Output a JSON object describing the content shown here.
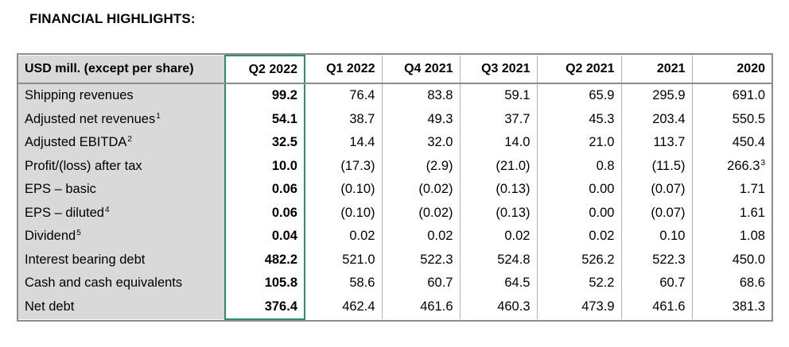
{
  "heading": "FINANCIAL HIGHLIGHTS:",
  "columns": [
    "USD mill. (except per share)",
    "Q2 2022",
    "Q1 2022",
    "Q4 2021",
    "Q3 2021",
    "Q2 2021",
    "2021",
    "2020"
  ],
  "rows": [
    {
      "label": "Shipping revenues",
      "sup": "",
      "values": [
        "99.2",
        "76.4",
        "83.8",
        "59.1",
        "65.9",
        "295.9",
        "691.0"
      ],
      "last_sup": ""
    },
    {
      "label": "Adjusted net revenues",
      "sup": "1",
      "values": [
        "54.1",
        "38.7",
        "49.3",
        "37.7",
        "45.3",
        "203.4",
        "550.5"
      ],
      "last_sup": ""
    },
    {
      "label": "Adjusted EBITDA",
      "sup": "2",
      "values": [
        "32.5",
        "14.4",
        "32.0",
        "14.0",
        "21.0",
        "113.7",
        "450.4"
      ],
      "last_sup": ""
    },
    {
      "label": "Profit/(loss) after tax",
      "sup": "",
      "values": [
        "10.0",
        "(17.3)",
        "(2.9)",
        "(21.0)",
        "0.8",
        "(11.5)",
        "266.3"
      ],
      "last_sup": "3"
    },
    {
      "label": "EPS – basic",
      "sup": "",
      "values": [
        "0.06",
        "(0.10)",
        "(0.02)",
        "(0.13)",
        "0.00",
        "(0.07)",
        "1.71"
      ],
      "last_sup": ""
    },
    {
      "label": "EPS – diluted",
      "sup": "4",
      "values": [
        "0.06",
        "(0.10)",
        "(0.02)",
        "(0.13)",
        "0.00",
        "(0.07)",
        "1.61"
      ],
      "last_sup": ""
    },
    {
      "label": "Dividend",
      "sup": "5",
      "values": [
        "0.04",
        "0.02",
        "0.02",
        "0.02",
        "0.02",
        "0.10",
        "1.08"
      ],
      "last_sup": ""
    },
    {
      "label": "Interest bearing debt",
      "sup": "",
      "values": [
        "482.2",
        "521.0",
        "522.3",
        "524.8",
        "526.2",
        "522.3",
        "450.0"
      ],
      "last_sup": ""
    },
    {
      "label": "Cash and cash equivalents",
      "sup": "",
      "values": [
        "105.8",
        "58.6",
        "60.7",
        "64.5",
        "52.2",
        "60.7",
        "68.6"
      ],
      "last_sup": ""
    },
    {
      "label": "Net debt",
      "sup": "",
      "values": [
        "376.4",
        "462.4",
        "461.6",
        "460.3",
        "473.9",
        "461.6",
        "381.3"
      ],
      "last_sup": ""
    }
  ],
  "colors": {
    "highlight_border": "#2e8b7a",
    "label_shade": "#d9d9d9",
    "table_border": "#8c8c8c"
  }
}
